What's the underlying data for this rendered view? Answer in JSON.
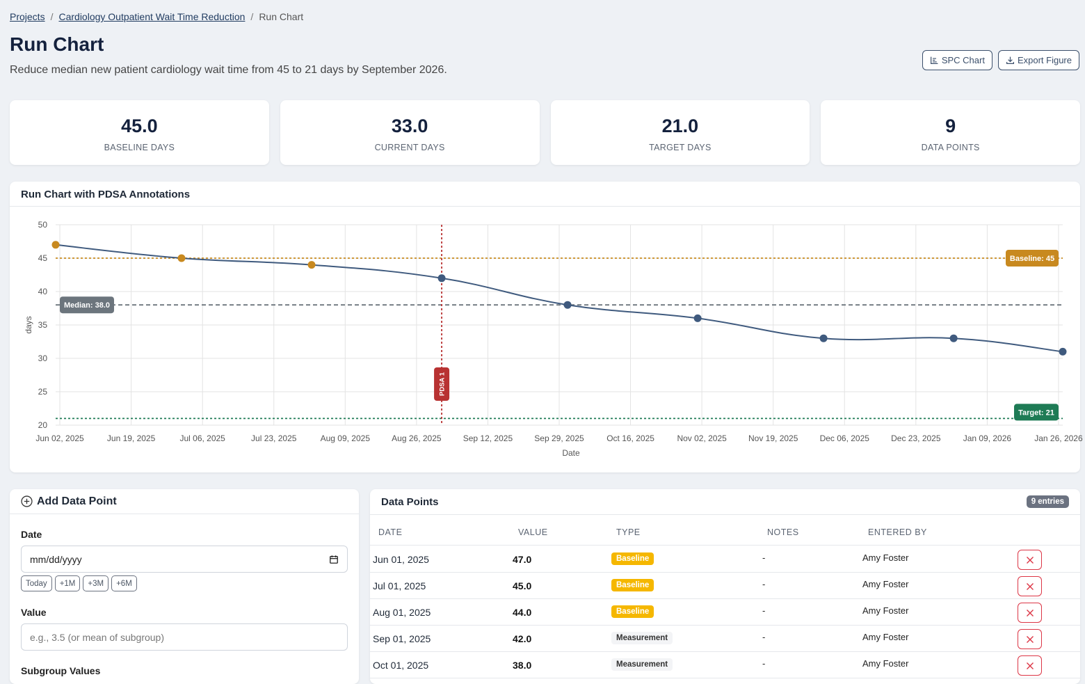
{
  "breadcrumb": {
    "projects": "Projects",
    "project": "Cardiology Outpatient Wait Time Reduction",
    "current": "Run Chart",
    "sep": "/"
  },
  "page": {
    "title": "Run Chart",
    "subtitle": "Reduce median new patient cardiology wait time from 45 to 21 days by September 2026.",
    "spc_button": "SPC Chart",
    "export_button": "Export Figure"
  },
  "stats": [
    {
      "value": "45.0",
      "label": "BASELINE DAYS"
    },
    {
      "value": "33.0",
      "label": "CURRENT DAYS"
    },
    {
      "value": "21.0",
      "label": "TARGET DAYS"
    },
    {
      "value": "9",
      "label": "DATA POINTS"
    }
  ],
  "chart_card": {
    "title": "Run Chart with PDSA Annotations"
  },
  "chart_data": {
    "type": "line",
    "xlabel": "Date",
    "ylabel": "days",
    "ylim": [
      20,
      50
    ],
    "xlim": [
      "2025-06-01",
      "2026-01-27"
    ],
    "yticks": [
      20,
      25,
      30,
      35,
      40,
      45,
      50
    ],
    "xtick_dates": [
      "2025-06-02",
      "2025-06-19",
      "2025-07-06",
      "2025-07-23",
      "2025-08-09",
      "2025-08-26",
      "2025-09-12",
      "2025-09-29",
      "2025-10-16",
      "2025-11-02",
      "2025-11-19",
      "2025-12-06",
      "2025-12-23",
      "2026-01-09",
      "2026-01-26"
    ],
    "xtick_labels": [
      "Jun 02, 2025",
      "Jun 19, 2025",
      "Jul 06, 2025",
      "Jul 23, 2025",
      "Aug 09, 2025",
      "Aug 26, 2025",
      "Sep 12, 2025",
      "Sep 29, 2025",
      "Oct 16, 2025",
      "Nov 02, 2025",
      "Nov 19, 2025",
      "Dec 06, 2025",
      "Dec 23, 2025",
      "Jan 09, 2026",
      "Jan 26, 2026"
    ],
    "points": [
      {
        "x": "2025-06-01",
        "y": 47,
        "type": "baseline"
      },
      {
        "x": "2025-07-01",
        "y": 45,
        "type": "baseline"
      },
      {
        "x": "2025-08-01",
        "y": 44,
        "type": "baseline"
      },
      {
        "x": "2025-09-01",
        "y": 42,
        "type": "measurement"
      },
      {
        "x": "2025-10-01",
        "y": 38,
        "type": "measurement"
      },
      {
        "x": "2025-11-01",
        "y": 36,
        "type": "measurement"
      },
      {
        "x": "2025-12-01",
        "y": 33,
        "type": "measurement"
      },
      {
        "x": "2026-01-01",
        "y": 33,
        "type": "measurement"
      },
      {
        "x": "2026-01-27",
        "y": 31,
        "type": "measurement"
      }
    ],
    "reference_lines": [
      {
        "y": 45,
        "label": "Baseline: 45",
        "color": "#c8891f"
      },
      {
        "y": 38,
        "label": "Median: 38.0",
        "color": "#6c757d"
      },
      {
        "y": 21,
        "label": "Target: 21",
        "color": "#1e7b55"
      }
    ],
    "annotations": [
      {
        "x": "2025-09-01",
        "label": "PDSA 1",
        "color": "#b83232"
      }
    ],
    "colors": {
      "baseline": "#c8891f",
      "measurement": "#3f5a7e",
      "line": "#3f5a7e"
    },
    "grid": true
  },
  "form": {
    "title": "Add Data Point",
    "date_label": "Date",
    "date_placeholder": "mm/dd/yyyy",
    "quick_buttons": [
      "Today",
      "+1M",
      "+3M",
      "+6M"
    ],
    "value_label": "Value",
    "value_placeholder": "e.g., 3.5 (or mean of subgroup)",
    "subgroup_label": "Subgroup Values"
  },
  "table": {
    "title": "Data Points",
    "entries_badge": "9 entries",
    "headers": {
      "date": "DATE",
      "value": "VALUE",
      "type": "TYPE",
      "notes": "NOTES",
      "entered_by": "ENTERED BY"
    },
    "rows": [
      {
        "date": "Jun 01, 2025",
        "value": "47.0",
        "type": "Baseline",
        "notes": "-",
        "entered_by": "Amy Foster"
      },
      {
        "date": "Jul 01, 2025",
        "value": "45.0",
        "type": "Baseline",
        "notes": "-",
        "entered_by": "Amy Foster"
      },
      {
        "date": "Aug 01, 2025",
        "value": "44.0",
        "type": "Baseline",
        "notes": "-",
        "entered_by": "Amy Foster"
      },
      {
        "date": "Sep 01, 2025",
        "value": "42.0",
        "type": "Measurement",
        "notes": "-",
        "entered_by": "Amy Foster"
      },
      {
        "date": "Oct 01, 2025",
        "value": "38.0",
        "type": "Measurement",
        "notes": "-",
        "entered_by": "Amy Foster"
      }
    ]
  }
}
